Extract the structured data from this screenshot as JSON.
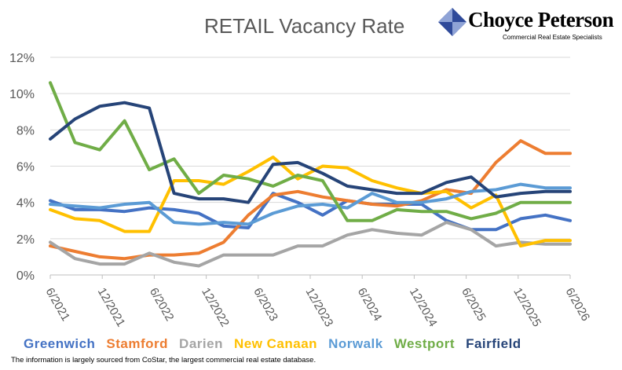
{
  "title": "RETAIL Vacancy Rate",
  "logo": {
    "name": "Choyce Peterson",
    "tagline": "Commercial Real Estate Specialists",
    "colors": [
      "#2f4a9a",
      "#8fa3d6"
    ]
  },
  "footnote": "The information is largely sourced from CoStar, the largest commercial real estate database.",
  "chart_data": {
    "type": "line",
    "title": "RETAIL Vacancy Rate",
    "ylim": [
      0,
      12
    ],
    "yticks": [
      "0%",
      "2%",
      "4%",
      "6%",
      "8%",
      "10%",
      "12%"
    ],
    "x_labels": [
      "6/2021",
      "12/2021",
      "6/2022",
      "12/2022",
      "6/2023",
      "12/2023",
      "6/2024",
      "12/2024",
      "6/2025",
      "12/2025",
      "6/2026"
    ],
    "grid": true,
    "legend": "bottom",
    "series": [
      {
        "name": "Greenwich",
        "color": "#4472c4",
        "values": [
          4.1,
          3.6,
          3.6,
          3.5,
          3.7,
          3.6,
          3.4,
          2.7,
          2.6,
          4.5,
          4.0,
          3.3,
          4.1,
          3.9,
          3.9,
          3.9,
          3.0,
          2.5,
          2.5,
          3.1,
          3.3,
          3.0
        ]
      },
      {
        "name": "Stamford",
        "color": "#ed7d31",
        "values": [
          1.6,
          1.3,
          1.0,
          0.9,
          1.1,
          1.1,
          1.2,
          1.8,
          3.3,
          4.4,
          4.6,
          4.3,
          4.1,
          3.9,
          3.8,
          4.1,
          4.7,
          4.5,
          6.2,
          7.4,
          6.7,
          6.7
        ]
      },
      {
        "name": "Darien",
        "color": "#a5a5a5",
        "values": [
          1.8,
          0.9,
          0.6,
          0.6,
          1.2,
          0.7,
          0.5,
          1.1,
          1.1,
          1.1,
          1.6,
          1.6,
          2.2,
          2.5,
          2.3,
          2.2,
          2.9,
          2.5,
          1.6,
          1.8,
          1.7,
          1.7
        ]
      },
      {
        "name": "New Canaan",
        "color": "#ffc000",
        "values": [
          3.6,
          3.1,
          3.0,
          2.4,
          2.4,
          5.2,
          5.2,
          5.0,
          5.7,
          6.5,
          5.3,
          6.0,
          5.9,
          5.2,
          4.8,
          4.5,
          4.6,
          3.7,
          4.4,
          1.6,
          1.9,
          1.9
        ]
      },
      {
        "name": "Norwalk",
        "color": "#5b9bd5",
        "values": [
          3.9,
          3.8,
          3.7,
          3.9,
          4.0,
          2.9,
          2.8,
          2.9,
          2.8,
          3.4,
          3.8,
          3.9,
          3.7,
          4.5,
          4.0,
          4.0,
          4.2,
          4.6,
          4.7,
          5.0,
          4.8,
          4.8
        ]
      },
      {
        "name": "Westport",
        "color": "#70ad47",
        "values": [
          10.6,
          7.3,
          6.9,
          8.5,
          5.8,
          6.4,
          4.5,
          5.5,
          5.3,
          4.9,
          5.5,
          5.2,
          3.0,
          3.0,
          3.6,
          3.5,
          3.5,
          3.1,
          3.4,
          4.0,
          4.0,
          4.0
        ]
      },
      {
        "name": "Fairfield",
        "color": "#264478",
        "values": [
          7.5,
          8.6,
          9.3,
          9.5,
          9.2,
          4.5,
          4.2,
          4.2,
          4.0,
          6.1,
          6.2,
          5.6,
          4.9,
          4.7,
          4.5,
          4.5,
          5.1,
          5.4,
          4.3,
          4.5,
          4.6,
          4.6
        ]
      }
    ]
  }
}
